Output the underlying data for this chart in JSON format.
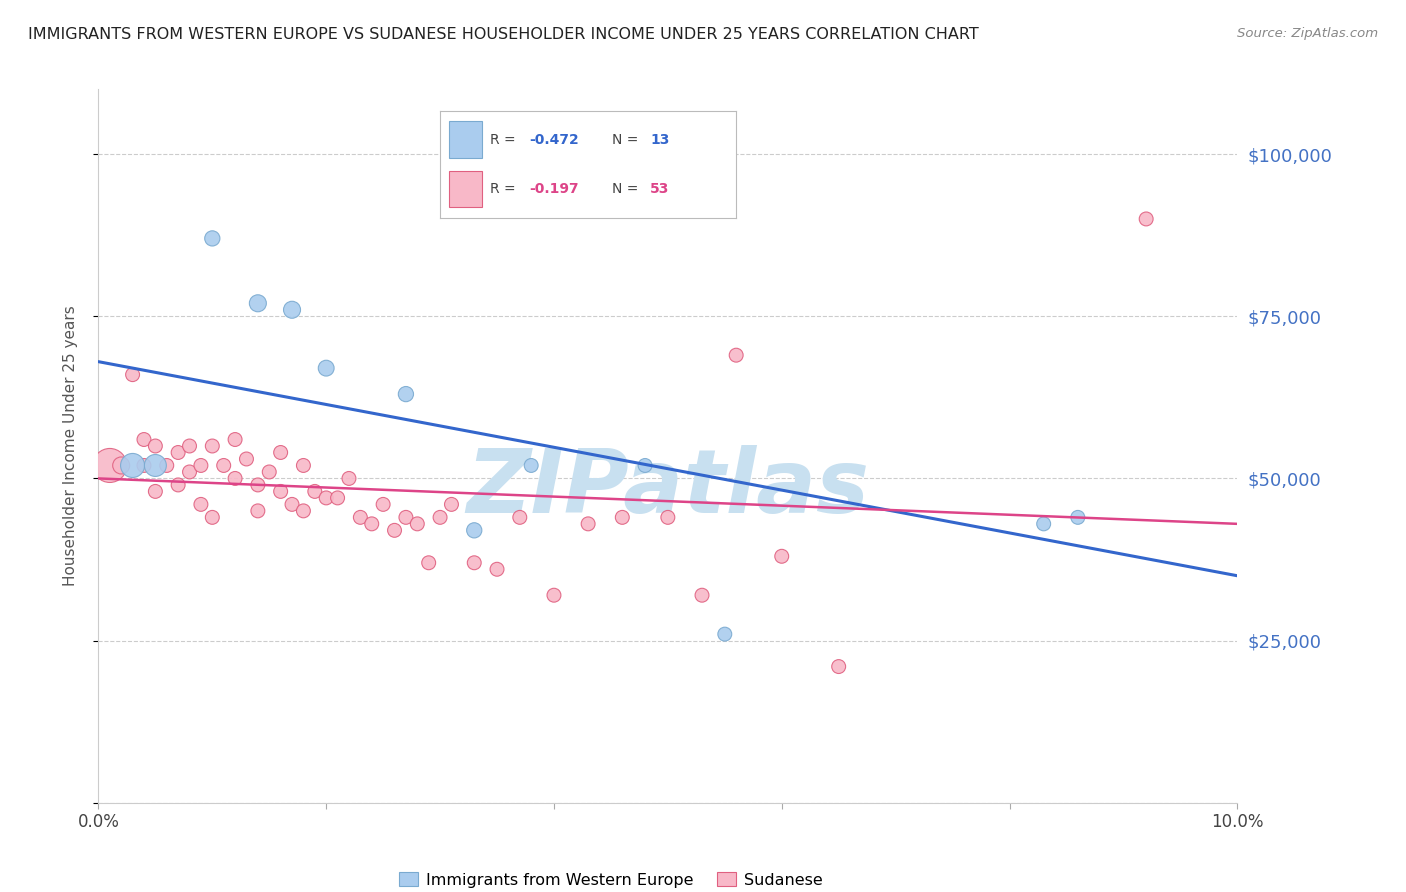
{
  "title": "IMMIGRANTS FROM WESTERN EUROPE VS SUDANESE HOUSEHOLDER INCOME UNDER 25 YEARS CORRELATION CHART",
  "source": "Source: ZipAtlas.com",
  "ylabel": "Householder Income Under 25 years",
  "xlim": [
    0,
    0.1
  ],
  "ylim": [
    0,
    110000
  ],
  "yticks": [
    0,
    25000,
    50000,
    75000,
    100000
  ],
  "ytick_labels": [
    "",
    "$25,000",
    "$50,000",
    "$75,000",
    "$100,000"
  ],
  "xticks": [
    0.0,
    0.02,
    0.04,
    0.06,
    0.08,
    0.1
  ],
  "xtick_labels": [
    "0.0%",
    "",
    "",
    "",
    "",
    "10.0%"
  ],
  "watermark": "ZIPatlas",
  "blue_trend_x": [
    0.0,
    0.1
  ],
  "blue_trend_y": [
    68000,
    35000
  ],
  "pink_trend_x": [
    0.0,
    0.1
  ],
  "pink_trend_y": [
    50000,
    43000
  ],
  "blue_scatter_x": [
    0.003,
    0.005,
    0.01,
    0.014,
    0.017,
    0.02,
    0.027,
    0.033,
    0.038,
    0.048,
    0.055,
    0.083,
    0.086
  ],
  "blue_scatter_y": [
    52000,
    52000,
    87000,
    77000,
    76000,
    67000,
    63000,
    42000,
    52000,
    52000,
    26000,
    43000,
    44000
  ],
  "blue_scatter_size": [
    300,
    250,
    120,
    150,
    150,
    130,
    120,
    120,
    100,
    100,
    100,
    100,
    100
  ],
  "pink_scatter_x": [
    0.001,
    0.002,
    0.003,
    0.004,
    0.004,
    0.005,
    0.005,
    0.006,
    0.007,
    0.007,
    0.008,
    0.008,
    0.009,
    0.009,
    0.01,
    0.01,
    0.011,
    0.012,
    0.012,
    0.013,
    0.014,
    0.014,
    0.015,
    0.016,
    0.016,
    0.017,
    0.018,
    0.018,
    0.019,
    0.02,
    0.021,
    0.022,
    0.023,
    0.024,
    0.025,
    0.026,
    0.027,
    0.028,
    0.029,
    0.03,
    0.031,
    0.033,
    0.035,
    0.037,
    0.04,
    0.043,
    0.046,
    0.05,
    0.053,
    0.056,
    0.06,
    0.065,
    0.092
  ],
  "pink_scatter_y": [
    52000,
    52000,
    66000,
    56000,
    52000,
    55000,
    48000,
    52000,
    54000,
    49000,
    55000,
    51000,
    52000,
    46000,
    55000,
    44000,
    52000,
    56000,
    50000,
    53000,
    49000,
    45000,
    51000,
    54000,
    48000,
    46000,
    52000,
    45000,
    48000,
    47000,
    47000,
    50000,
    44000,
    43000,
    46000,
    42000,
    44000,
    43000,
    37000,
    44000,
    46000,
    37000,
    36000,
    44000,
    32000,
    43000,
    44000,
    44000,
    32000,
    69000,
    38000,
    21000,
    90000
  ],
  "pink_scatter_size": [
    600,
    150,
    100,
    100,
    100,
    100,
    100,
    100,
    100,
    100,
    100,
    100,
    100,
    100,
    100,
    100,
    100,
    100,
    100,
    100,
    100,
    100,
    100,
    100,
    100,
    100,
    100,
    100,
    100,
    100,
    100,
    100,
    100,
    100,
    100,
    100,
    100,
    100,
    100,
    100,
    100,
    100,
    100,
    100,
    100,
    100,
    100,
    100,
    100,
    100,
    100,
    100,
    100
  ],
  "blue_color": "#aaccee",
  "blue_edge_color": "#7aaad0",
  "pink_color": "#f8b8c8",
  "pink_edge_color": "#e06080",
  "blue_line_color": "#3366cc",
  "pink_line_color": "#dd4488",
  "axis_color": "#4472c4",
  "title_color": "#222222",
  "background_color": "#ffffff",
  "grid_color": "#cccccc",
  "watermark_color": "#c8e0f0"
}
